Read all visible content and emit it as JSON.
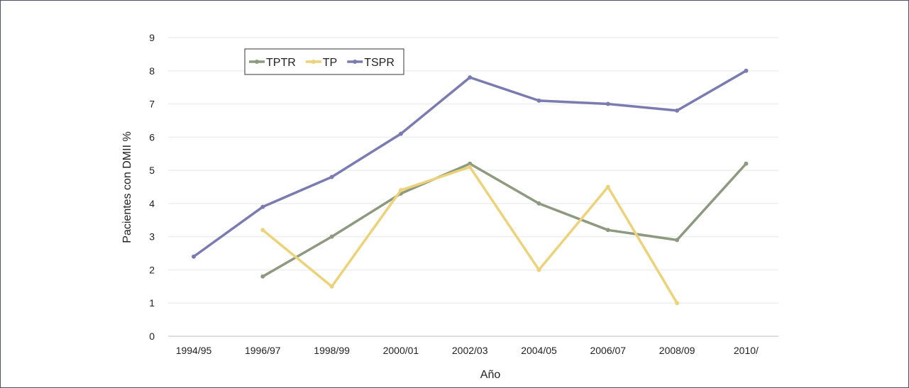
{
  "chart_data": {
    "type": "line",
    "title": "",
    "xlabel": "Año",
    "ylabel": "Pacientes con DMII %",
    "ylim": [
      0,
      9
    ],
    "yticks": [
      0,
      1,
      2,
      3,
      4,
      5,
      6,
      7,
      8,
      9
    ],
    "grid": true,
    "legend_position": "top-left",
    "categories": [
      "1994/95",
      "1996/97",
      "1998/99",
      "2000/01",
      "2002/03",
      "2004/05",
      "2006/07",
      "2008/09",
      "2010/"
    ],
    "series": [
      {
        "name": "TPTR",
        "color": "#8e9a80",
        "values": [
          null,
          1.8,
          3.0,
          4.3,
          5.2,
          4.0,
          3.2,
          2.9,
          5.2
        ]
      },
      {
        "name": "TP",
        "color": "#ecd27a",
        "values": [
          null,
          3.2,
          1.5,
          4.4,
          5.1,
          2.0,
          4.5,
          1.0,
          null
        ]
      },
      {
        "name": "TSPR",
        "color": "#7a7bb0",
        "values": [
          2.4,
          3.9,
          4.8,
          6.1,
          7.8,
          7.1,
          7.0,
          6.8,
          8.0
        ]
      }
    ]
  }
}
